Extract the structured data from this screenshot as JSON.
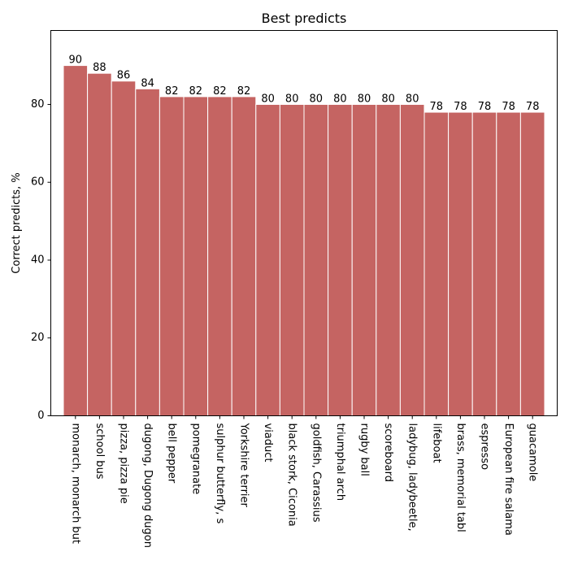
{
  "chart_data": {
    "type": "bar",
    "title": "Best predicts",
    "xlabel": "",
    "ylabel": "Correct predicts, %",
    "ylim": [
      0,
      99
    ],
    "yticks": [
      0,
      20,
      40,
      60,
      80
    ],
    "bar_color": "#c56462",
    "categories": [
      "monarch, monarch but",
      "school bus",
      "pizza, pizza pie",
      "dugong, Dugong dugon",
      "bell pepper",
      "pomegranate",
      "sulphur butterfly, s",
      "Yorkshire terrier",
      "viaduct",
      "black stork, Ciconia",
      "goldfish, Carassius",
      "triumphal arch",
      "rugby ball",
      "scoreboard",
      "ladybug, ladybeetle,",
      "lifeboat",
      "brass, memorial tabl",
      "espresso",
      "European fire salama",
      "guacamole"
    ],
    "values": [
      90,
      88,
      86,
      84,
      82,
      82,
      82,
      82,
      80,
      80,
      80,
      80,
      80,
      80,
      80,
      78,
      78,
      78,
      78,
      78
    ]
  }
}
